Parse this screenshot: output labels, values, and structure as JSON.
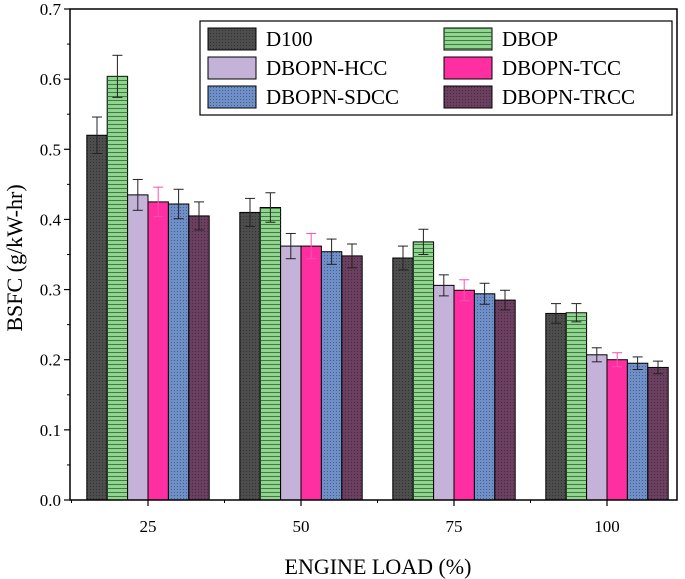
{
  "chart_data": {
    "type": "bar",
    "title": "",
    "xlabel": "ENGINE LOAD (%)",
    "ylabel": "BSFC (g/kW-hr)",
    "ylim": [
      0,
      0.7
    ],
    "yticks": [
      "0.0",
      "0.1",
      "0.2",
      "0.3",
      "0.4",
      "0.5",
      "0.6",
      "0.7"
    ],
    "categories": [
      "25",
      "50",
      "75",
      "100"
    ],
    "legend_position": "top-right",
    "series": [
      {
        "name": "D100",
        "color": "#4d4d4d",
        "pattern": "dots",
        "values": [
          0.52,
          0.41,
          0.345,
          0.266
        ],
        "errors": [
          0.026,
          0.02,
          0.017,
          0.014
        ]
      },
      {
        "name": "DBOP",
        "color": "#8fd48f",
        "pattern": "hlines",
        "values": [
          0.604,
          0.417,
          0.368,
          0.267
        ],
        "errors": [
          0.03,
          0.021,
          0.018,
          0.013
        ]
      },
      {
        "name": "DBOPN-HCC",
        "color": "#c4b2d8",
        "pattern": "none",
        "values": [
          0.435,
          0.362,
          0.306,
          0.207
        ],
        "errors": [
          0.022,
          0.018,
          0.015,
          0.01
        ]
      },
      {
        "name": "DBOPN-TCC",
        "color": "#ff2fa1",
        "pattern": "none",
        "values": [
          0.425,
          0.362,
          0.299,
          0.2
        ],
        "errors": [
          0.021,
          0.018,
          0.015,
          0.01
        ]
      },
      {
        "name": "DBOPN-SDCC",
        "color": "#6f8fc9",
        "pattern": "dots",
        "values": [
          0.422,
          0.354,
          0.294,
          0.195
        ],
        "errors": [
          0.021,
          0.018,
          0.015,
          0.009
        ]
      },
      {
        "name": "DBOPN-TRCC",
        "color": "#6b3f5f",
        "pattern": "dots",
        "values": [
          0.405,
          0.348,
          0.285,
          0.189
        ],
        "errors": [
          0.02,
          0.017,
          0.014,
          0.009
        ]
      }
    ]
  }
}
